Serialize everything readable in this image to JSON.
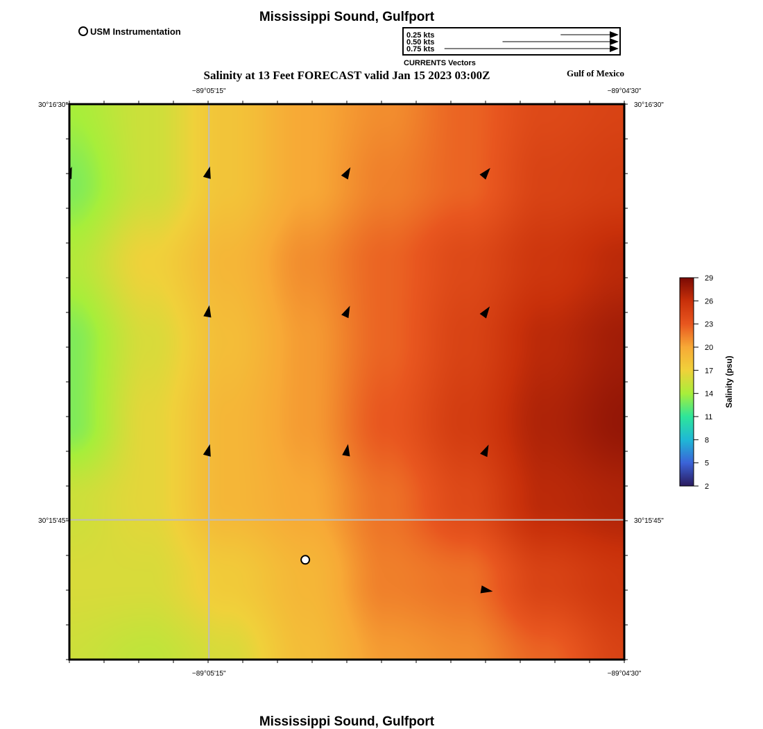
{
  "header": {
    "title": "Mississippi Sound, Gulfport",
    "subtitle": "Salinity at 13 Feet FORECAST valid Jan 15 2023 03:00Z",
    "region_label": "Gulf of Mexico"
  },
  "footer": {
    "title": "Mississippi Sound, Gulfport"
  },
  "instrument_legend": {
    "label": "USM Instrumentation"
  },
  "vector_scale": {
    "caption": "CURRENTS Vectors",
    "entries": [
      {
        "label": "0.25 kts",
        "speed_kts": 0.25
      },
      {
        "label": "0.50 kts",
        "speed_kts": 0.5
      },
      {
        "label": "0.75 kts",
        "speed_kts": 0.75
      }
    ]
  },
  "map": {
    "lon_range": [
      -89.0917,
      -89.075
    ],
    "lat_range": [
      30.2583,
      30.275
    ],
    "lon_ticks": [
      {
        "value": -89.0875,
        "label": "−89°05'15\""
      },
      {
        "value": -89.075,
        "label": "−89°04'30\""
      }
    ],
    "lat_ticks": [
      {
        "value": 30.275,
        "label": "30°16'30\""
      },
      {
        "value": 30.2625,
        "label": "30°15'45\""
      }
    ],
    "gridlines": true,
    "instrument_station": {
      "lon": -89.0846,
      "lat": 30.2613
    },
    "current_arrows": [
      {
        "col": 0,
        "row": 1,
        "dir_deg": 20
      },
      {
        "col": 1,
        "row": 1,
        "dir_deg": 15
      },
      {
        "col": 2,
        "row": 1,
        "dir_deg": 30
      },
      {
        "col": 3,
        "row": 1,
        "dir_deg": 40
      },
      {
        "col": 1,
        "row": 3,
        "dir_deg": 10
      },
      {
        "col": 2,
        "row": 3,
        "dir_deg": 25
      },
      {
        "col": 3,
        "row": 3,
        "dir_deg": 35
      },
      {
        "col": 1,
        "row": 5,
        "dir_deg": 15
      },
      {
        "col": 2,
        "row": 5,
        "dir_deg": 10
      },
      {
        "col": 3,
        "row": 5,
        "dir_deg": 25
      },
      {
        "col": 3,
        "row": 7,
        "dir_deg": 100
      }
    ]
  },
  "colorbar": {
    "label": "Salinity (psu)",
    "min": 2,
    "max": 29,
    "ticks": [
      "2",
      "5",
      "8",
      "11",
      "14",
      "17",
      "20",
      "23",
      "26",
      "29"
    ],
    "colors": [
      "#2a1a5e",
      "#3b63d8",
      "#1fb8d6",
      "#2ee59a",
      "#a8ee3a",
      "#f0d13a",
      "#f7a936",
      "#e8561f",
      "#c8300a",
      "#7a0a04"
    ]
  },
  "chart_data": {
    "type": "heatmap",
    "title": "Salinity at 13 Feet FORECAST valid Jan 15 2023 03:00Z",
    "xlabel": "",
    "ylabel": "",
    "colorbar_label": "Salinity (psu)",
    "zlim": [
      2,
      29
    ],
    "grid": true,
    "x_ticks": [
      "−89°05'15\"",
      "−89°04'30\""
    ],
    "y_ticks": [
      "30°16'30\"",
      "30°15'45\""
    ],
    "values": [
      [
        14.0,
        15.5,
        18.0,
        20.0,
        21.0,
        22.5,
        24.0,
        24.5
      ],
      [
        13.0,
        15.5,
        18.0,
        20.0,
        21.5,
        22.5,
        24.5,
        25.0
      ],
      [
        14.5,
        17.0,
        19.0,
        21.0,
        22.5,
        24.0,
        25.5,
        26.5
      ],
      [
        13.0,
        16.0,
        18.5,
        20.5,
        22.5,
        24.5,
        26.5,
        27.5
      ],
      [
        13.0,
        16.5,
        19.0,
        20.5,
        23.0,
        25.0,
        27.0,
        28.0
      ],
      [
        15.5,
        16.5,
        19.0,
        20.0,
        22.0,
        24.0,
        26.5,
        27.0
      ],
      [
        16.0,
        16.0,
        17.5,
        19.0,
        21.5,
        22.0,
        24.5,
        25.5
      ],
      [
        15.5,
        15.0,
        16.0,
        18.5,
        20.5,
        21.0,
        22.5,
        24.5
      ]
    ]
  }
}
